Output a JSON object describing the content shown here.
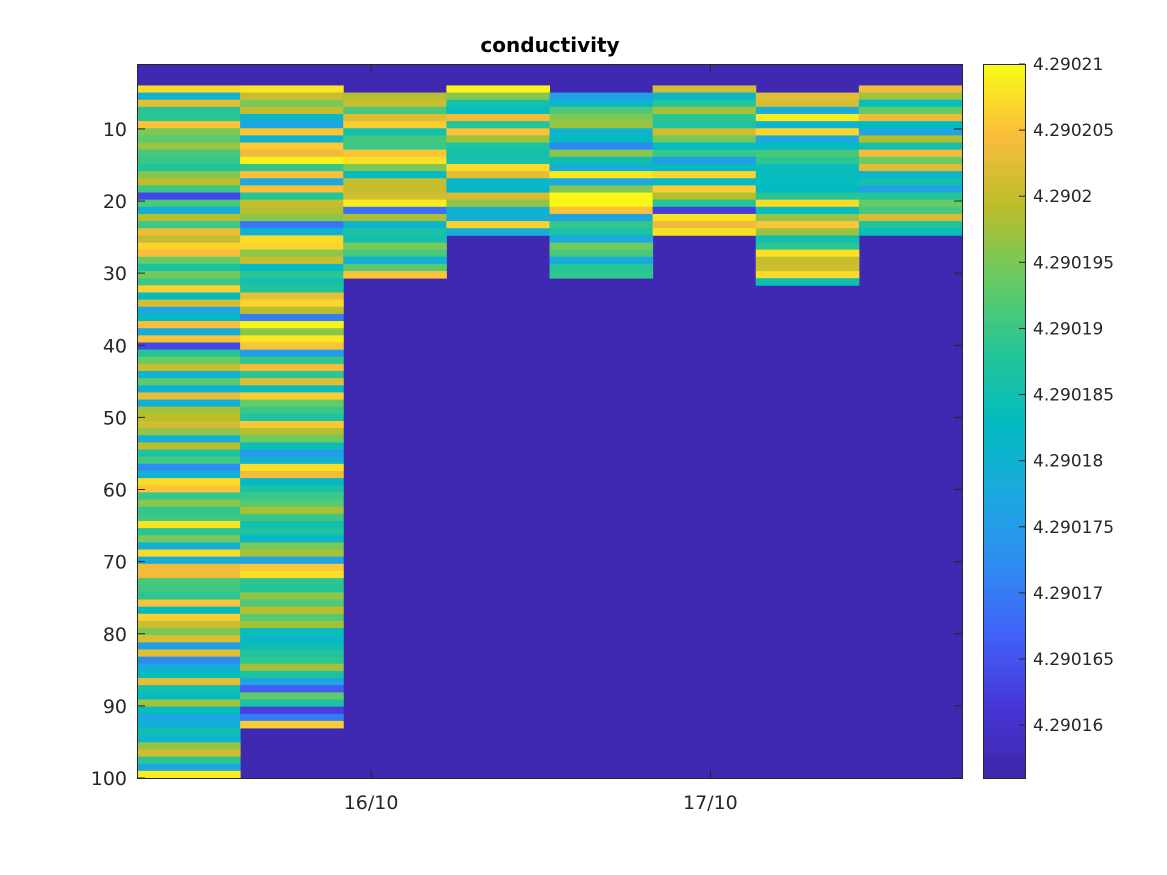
{
  "chart_data": {
    "type": "heatmap",
    "title": "conductivity",
    "xlabel": "",
    "ylabel": "",
    "colormap": "parula",
    "x_tick_labels": [
      "16/10",
      "17/10"
    ],
    "y_tick_values": [
      10,
      20,
      30,
      40,
      50,
      60,
      70,
      80,
      90,
      100
    ],
    "ylim": [
      1,
      100
    ],
    "y_reversed": true,
    "clim": [
      4.290156,
      4.29021
    ],
    "colorbar_ticks": [
      "4.29016",
      "4.290165",
      "4.29017",
      "4.290175",
      "4.29018",
      "4.290185",
      "4.29019",
      "4.290195",
      "4.2902",
      "4.290205",
      "4.29021"
    ],
    "colorbar_tick_values": [
      4.29016,
      4.290165,
      4.29017,
      4.290175,
      4.29018,
      4.290185,
      4.29019,
      4.290195,
      4.2902,
      4.290205,
      4.29021
    ],
    "background_value": 4.290157,
    "columns": [
      {
        "depth_start": 4,
        "depth_end": 100,
        "seed": 11
      },
      {
        "depth_start": 4,
        "depth_end": 93,
        "seed": 23
      },
      {
        "depth_start": 5,
        "depth_end": 30,
        "seed": 37
      },
      {
        "depth_start": 4,
        "depth_end": 24,
        "seed": 41
      },
      {
        "depth_start": 5,
        "depth_end": 30,
        "seed": 53
      },
      {
        "depth_start": 4,
        "depth_end": 24,
        "seed": 67
      },
      {
        "depth_start": 5,
        "depth_end": 31,
        "seed": 79
      },
      {
        "depth_start": 4,
        "depth_end": 24,
        "seed": 97
      }
    ]
  }
}
